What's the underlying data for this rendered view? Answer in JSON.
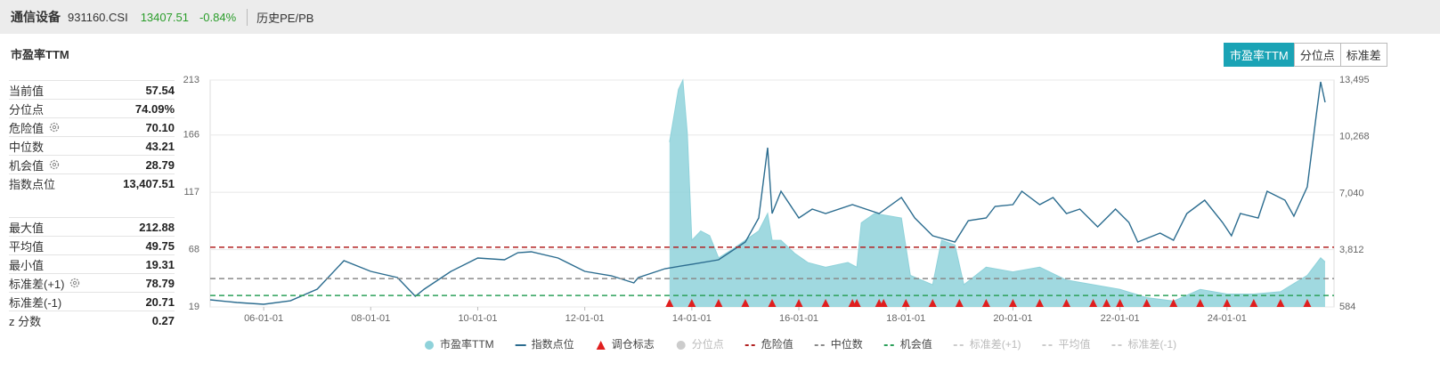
{
  "header": {
    "name": "通信设备",
    "code": "931160.CSI",
    "price": "13407.51",
    "change": "-0.84%",
    "tab": "历史PE/PB"
  },
  "panel": {
    "title": "市盈率TTM",
    "buttons": [
      "市盈率TTM",
      "分位点",
      "标准差"
    ],
    "active_button": 0
  },
  "stats": [
    [
      {
        "label": "当前值",
        "value": "57.54",
        "gear": false
      },
      {
        "label": "分位点",
        "value": "74.09%",
        "gear": false
      },
      {
        "label": "危险值",
        "value": "70.10",
        "gear": true
      },
      {
        "label": "中位数",
        "value": "43.21",
        "gear": false
      },
      {
        "label": "机会值",
        "value": "28.79",
        "gear": true
      },
      {
        "label": "指数点位",
        "value": "13,407.51",
        "gear": false
      }
    ],
    [
      {
        "label": "最大值",
        "value": "212.88",
        "gear": false
      },
      {
        "label": "平均值",
        "value": "49.75",
        "gear": false
      },
      {
        "label": "最小值",
        "value": "19.31",
        "gear": false
      },
      {
        "label": "标准差(+1)",
        "value": "78.79",
        "gear": true
      },
      {
        "label": "标准差(-1)",
        "value": "20.71",
        "gear": false
      },
      {
        "label": "z 分数",
        "value": "0.27",
        "gear": false
      }
    ]
  ],
  "chart_data": {
    "type": "line",
    "xlim": [
      "05-01-01",
      "26-01-01"
    ],
    "xticks": [
      "06-01-01",
      "08-01-01",
      "10-01-01",
      "12-01-01",
      "14-01-01",
      "16-01-01",
      "18-01-01",
      "20-01-01",
      "22-01-01",
      "24-01-01"
    ],
    "ylim": [
      19,
      213
    ],
    "yticks": [
      19,
      68,
      117,
      166,
      213
    ],
    "y2lim": [
      584,
      13495
    ],
    "y2ticks": [
      {
        "value": 584,
        "label": "584"
      },
      {
        "value": 3812,
        "label": "3,812"
      },
      {
        "value": 7040,
        "label": "7,040"
      },
      {
        "value": 10268,
        "label": "10,268"
      },
      {
        "value": 13495,
        "label": "13,495"
      }
    ],
    "grid": true,
    "series": [
      {
        "name": "市盈率TTM",
        "type": "area",
        "color": "#8fd2da",
        "x": [
          "13-08-01",
          "13-10-01",
          "13-11-01",
          "13-12-01",
          "14-01-01",
          "14-03-01",
          "14-05-01",
          "14-07-01",
          "14-10-01",
          "15-01-01",
          "15-04-01",
          "15-06-01",
          "15-07-01",
          "15-09-01",
          "15-12-01",
          "16-03-01",
          "16-07-01",
          "16-12-01",
          "17-02-01",
          "17-03-01",
          "17-06-01",
          "17-12-01",
          "18-02-01",
          "18-07-01",
          "18-09-01",
          "18-12-01",
          "19-02-01",
          "19-07-01",
          "20-01-01",
          "20-07-01",
          "21-01-01",
          "21-07-01",
          "22-01-01",
          "22-07-01",
          "23-01-01",
          "23-07-01",
          "24-01-01",
          "24-07-01",
          "25-01-01",
          "25-07-01",
          "25-10-01",
          "25-11-01"
        ],
        "values": [
          160,
          205,
          213,
          167,
          76,
          84,
          80,
          61,
          68,
          76,
          84,
          99,
          76,
          76,
          65,
          57,
          53,
          57,
          53,
          91,
          99,
          95,
          46,
          38,
          76,
          72,
          38,
          53,
          49,
          53,
          42,
          38,
          34,
          27,
          24,
          34,
          30,
          30,
          32,
          46,
          61,
          57.5
        ]
      },
      {
        "name": "指数点位",
        "type": "line",
        "axis": "y2",
        "color": "#2b6c8f",
        "x": [
          "05-01-01",
          "05-07-01",
          "06-01-01",
          "06-07-01",
          "07-01-01",
          "07-07-01",
          "08-01-01",
          "08-07-01",
          "08-11-01",
          "09-01-01",
          "09-07-01",
          "10-01-01",
          "10-07-01",
          "10-10-01",
          "11-01-01",
          "11-07-01",
          "12-01-01",
          "12-07-01",
          "12-12-01",
          "13-01-01",
          "13-07-01",
          "14-01-01",
          "14-07-01",
          "15-01-01",
          "15-04-01",
          "15-06-01",
          "15-07-01",
          "15-09-01",
          "16-01-01",
          "16-04-01",
          "16-07-01",
          "17-01-01",
          "17-07-01",
          "17-12-01",
          "18-03-01",
          "18-07-01",
          "18-12-01",
          "19-03-01",
          "19-07-01",
          "19-09-01",
          "20-01-01",
          "20-03-01",
          "20-07-01",
          "20-10-01",
          "21-01-01",
          "21-04-01",
          "21-08-01",
          "21-12-01",
          "22-03-01",
          "22-05-01",
          "22-10-01",
          "23-01-01",
          "23-04-01",
          "23-08-01",
          "23-12-01",
          "24-02-01",
          "24-04-01",
          "24-08-01",
          "24-10-01",
          "25-02-01",
          "25-04-01",
          "25-07-01",
          "25-09-01",
          "25-10-01",
          "25-11-01"
        ],
        "values": [
          989,
          837,
          736,
          938,
          1596,
          3217,
          2609,
          2255,
          1192,
          1597,
          2609,
          3369,
          3267,
          3672,
          3723,
          3369,
          2609,
          2356,
          1951,
          2255,
          2761,
          3014,
          3267,
          4280,
          5647,
          9647,
          5900,
          7166,
          5647,
          6153,
          5900,
          6406,
          5900,
          6812,
          5647,
          4634,
          4280,
          5495,
          5647,
          6305,
          6406,
          7166,
          6406,
          6812,
          5900,
          6153,
          5141,
          6153,
          5394,
          4280,
          4786,
          4381,
          5900,
          6659,
          5394,
          4634,
          5900,
          5647,
          7166,
          6659,
          5748,
          7419,
          11470,
          13394,
          12230
        ]
      }
    ],
    "markers": {
      "name": "调仓标志",
      "color": "#e01e1e",
      "x": [
        "13-08-01",
        "14-01-01",
        "14-07-01",
        "15-01-01",
        "15-07-01",
        "16-01-01",
        "16-07-01",
        "17-01-01",
        "17-02-01",
        "17-07-01",
        "17-08-01",
        "18-01-01",
        "18-07-01",
        "19-01-01",
        "19-07-01",
        "20-01-01",
        "20-07-01",
        "21-01-01",
        "21-07-01",
        "21-10-01",
        "22-01-01",
        "22-07-01",
        "23-01-01",
        "23-07-01",
        "24-01-01",
        "24-07-01",
        "25-01-01",
        "25-07-01"
      ]
    },
    "hidden_series": [
      {
        "name": "分位点",
        "color": "#cccccc"
      }
    ],
    "reference_lines": [
      {
        "name": "危险值",
        "value": 70.1,
        "color": "#b22222",
        "visible": true
      },
      {
        "name": "中位数",
        "value": 43.21,
        "color": "#8a8a8a",
        "visible": true
      },
      {
        "name": "机会值",
        "value": 28.79,
        "color": "#2ca05a",
        "visible": true
      },
      {
        "name": "标准差(+1)",
        "value": 78.79,
        "color": "#cccccc",
        "visible": false
      },
      {
        "name": "平均值",
        "value": 49.75,
        "color": "#cccccc",
        "visible": false
      },
      {
        "name": "标准差(-1)",
        "value": 20.71,
        "color": "#cccccc",
        "visible": false
      }
    ]
  }
}
